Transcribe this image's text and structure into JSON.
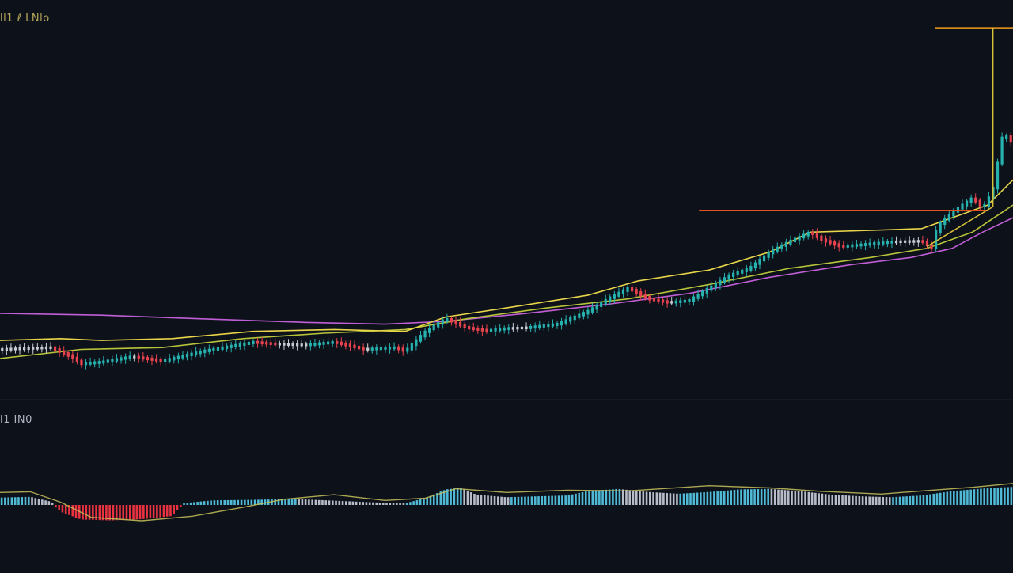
{
  "labels": {
    "price_panel": "ll1 ℓ LNlo",
    "oscillator_panel": "l1 IN0"
  },
  "colors": {
    "background": "#0d111a",
    "panel_separator": "#141a25",
    "candle_up": "#26b3b0",
    "candle_down": "#e8434f",
    "candle_neutral": "#c9ccd3",
    "ma_fast": "#e9d54a",
    "ma_mid": "#b7c43a",
    "ma_slow": "#c05ed6",
    "resistance": "#e0531f",
    "target_line": "#f29a1c",
    "breakout_line": "#d8c23a",
    "hist_up": "#4fb9d6",
    "hist_down": "#e8323f",
    "hist_neutral": "#b8bcc8",
    "signal_line": "#c8c25a"
  },
  "chart_data": [
    {
      "type": "candlestick",
      "panel": "price",
      "title": "",
      "xlabel": "",
      "ylabel": "",
      "ylim": [
        0,
        100
      ],
      "grid": false,
      "price_path": [
        [
          0,
          8
        ],
        [
          5,
          8.5
        ],
        [
          7,
          6
        ],
        [
          8,
          4
        ],
        [
          10,
          4.5
        ],
        [
          13,
          6
        ],
        [
          16,
          4.8
        ],
        [
          20,
          7.5
        ],
        [
          25,
          10
        ],
        [
          27,
          9.5
        ],
        [
          30,
          9.2
        ],
        [
          33,
          10
        ],
        [
          36,
          8
        ],
        [
          39,
          8.5
        ],
        [
          40,
          7.5
        ],
        [
          42,
          13
        ],
        [
          44,
          16.5
        ],
        [
          46,
          14
        ],
        [
          48,
          13.2
        ],
        [
          50,
          13.8
        ],
        [
          52,
          14
        ],
        [
          55,
          15
        ],
        [
          58,
          18.5
        ],
        [
          60,
          22
        ],
        [
          62,
          25
        ],
        [
          64,
          22
        ],
        [
          66,
          21
        ],
        [
          68,
          21.5
        ],
        [
          70,
          25
        ],
        [
          72,
          28.5
        ],
        [
          74,
          30.5
        ],
        [
          76,
          35
        ],
        [
          78,
          38
        ],
        [
          80,
          40.5
        ],
        [
          81,
          38.5
        ],
        [
          83,
          36.5
        ],
        [
          85,
          37
        ],
        [
          88,
          37.8
        ],
        [
          91,
          38
        ],
        [
          92,
          36
        ],
        [
          92.5,
          42
        ],
        [
          94,
          46
        ],
        [
          96,
          50
        ],
        [
          97,
          47
        ],
        [
          98,
          52
        ],
        [
          99,
          68
        ],
        [
          100,
          65
        ]
      ],
      "ma_fast": [
        [
          0,
          10.5
        ],
        [
          6,
          11
        ],
        [
          10,
          10.5
        ],
        [
          17,
          11
        ],
        [
          25,
          13
        ],
        [
          33,
          13.5
        ],
        [
          40,
          13
        ],
        [
          44,
          17
        ],
        [
          50,
          19.5
        ],
        [
          58,
          23
        ],
        [
          63,
          27
        ],
        [
          70,
          30
        ],
        [
          76,
          35
        ],
        [
          80,
          40.5
        ],
        [
          86,
          41
        ],
        [
          91,
          41.5
        ],
        [
          94,
          44.5
        ],
        [
          97.5,
          48
        ],
        [
          100,
          55
        ]
      ],
      "ma_mid": [
        [
          0,
          5.5
        ],
        [
          8,
          8
        ],
        [
          16,
          8.5
        ],
        [
          24,
          11
        ],
        [
          32,
          12.5
        ],
        [
          40,
          13.5
        ],
        [
          46,
          16.5
        ],
        [
          54,
          19.5
        ],
        [
          62,
          22
        ],
        [
          70,
          26
        ],
        [
          78,
          30.5
        ],
        [
          86,
          33.5
        ],
        [
          91.5,
          36
        ],
        [
          96,
          40.5
        ],
        [
          100,
          48
        ]
      ],
      "ma_slow": [
        [
          0,
          18
        ],
        [
          10,
          17.5
        ],
        [
          20,
          16.5
        ],
        [
          30,
          15.5
        ],
        [
          38,
          15
        ],
        [
          44,
          15.8
        ],
        [
          52,
          18
        ],
        [
          60,
          20.5
        ],
        [
          68,
          23.5
        ],
        [
          76,
          28
        ],
        [
          84,
          31.5
        ],
        [
          90,
          33.5
        ],
        [
          94,
          36
        ],
        [
          97,
          40.5
        ],
        [
          100,
          44.5
        ]
      ],
      "annotations": {
        "resistance_level": 46.5,
        "resistance_x_range": [
          69,
          97.5
        ],
        "target_level": 97,
        "target_x_range": [
          92.3,
          100
        ],
        "breakout_x": 98,
        "breakout_from": 47.5,
        "breakout_to": 97
      }
    },
    {
      "type": "bar",
      "panel": "oscillator",
      "title": "",
      "xlabel": "",
      "ylabel": "",
      "ylim": [
        -1,
        1
      ],
      "grid": false,
      "histogram_path": [
        [
          0,
          0.38
        ],
        [
          3,
          0.42
        ],
        [
          5,
          0.15
        ],
        [
          6,
          -0.35
        ],
        [
          8,
          -0.8
        ],
        [
          11,
          -0.85
        ],
        [
          14,
          -0.78
        ],
        [
          17,
          -0.6
        ],
        [
          18,
          0.05
        ],
        [
          21,
          0.22
        ],
        [
          25,
          0.25
        ],
        [
          29,
          0.3
        ],
        [
          33,
          0.2
        ],
        [
          37,
          0.1
        ],
        [
          40,
          0.05
        ],
        [
          42,
          0.35
        ],
        [
          44,
          0.85
        ],
        [
          45.5,
          0.95
        ],
        [
          47,
          0.55
        ],
        [
          50,
          0.4
        ],
        [
          53,
          0.45
        ],
        [
          56,
          0.5
        ],
        [
          58,
          0.75
        ],
        [
          61,
          0.88
        ],
        [
          64,
          0.7
        ],
        [
          67,
          0.6
        ],
        [
          70,
          0.7
        ],
        [
          73,
          0.85
        ],
        [
          76,
          0.88
        ],
        [
          79,
          0.75
        ],
        [
          82,
          0.55
        ],
        [
          85,
          0.45
        ],
        [
          88,
          0.4
        ],
        [
          91,
          0.5
        ],
        [
          94,
          0.75
        ],
        [
          96,
          0.85
        ],
        [
          98,
          0.95
        ],
        [
          100,
          1
        ]
      ],
      "signal_line": [
        [
          0,
          0.55
        ],
        [
          3,
          0.58
        ],
        [
          6,
          0.12
        ],
        [
          9,
          -0.55
        ],
        [
          14,
          -0.7
        ],
        [
          19,
          -0.5
        ],
        [
          24,
          -0.1
        ],
        [
          28,
          0.25
        ],
        [
          33,
          0.45
        ],
        [
          38,
          0.2
        ],
        [
          42,
          0.3
        ],
        [
          45,
          0.72
        ],
        [
          50,
          0.55
        ],
        [
          56,
          0.65
        ],
        [
          62,
          0.62
        ],
        [
          70,
          0.85
        ],
        [
          76,
          0.75
        ],
        [
          81,
          0.6
        ],
        [
          87,
          0.48
        ],
        [
          92,
          0.65
        ],
        [
          96,
          0.78
        ],
        [
          100,
          0.95
        ]
      ]
    }
  ]
}
